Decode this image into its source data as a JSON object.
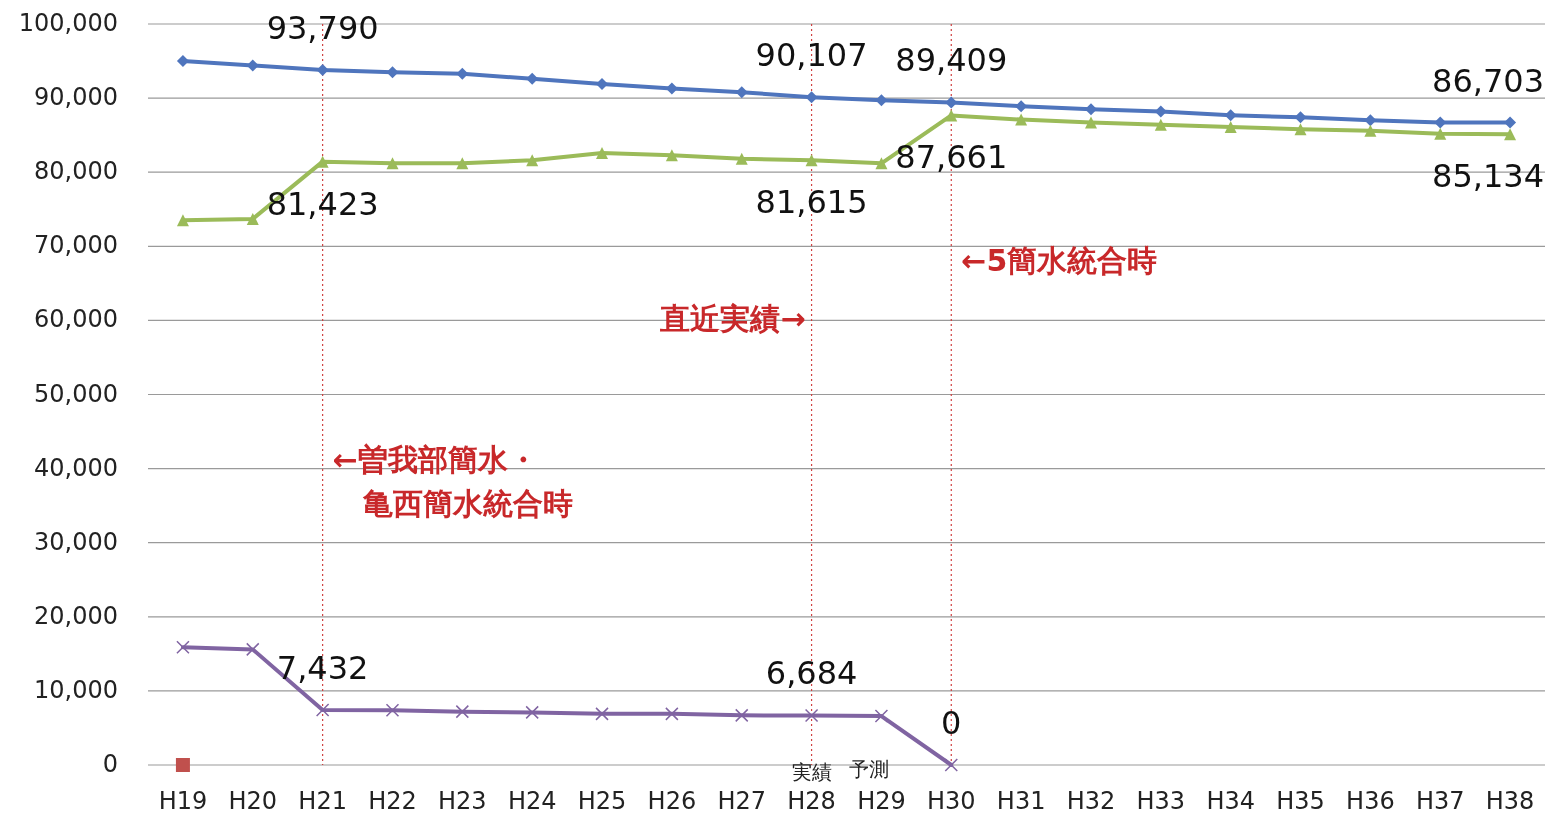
{
  "chart_data": {
    "type": "line",
    "categories": [
      "H19",
      "H20",
      "H21",
      "H22",
      "H23",
      "H24",
      "H25",
      "H26",
      "H27",
      "H28",
      "H29",
      "H30",
      "H31",
      "H32",
      "H33",
      "H34",
      "H35",
      "H36",
      "H37",
      "H38"
    ],
    "ylim": [
      0,
      100000
    ],
    "yticks": [
      0,
      {
        "value": 10000,
        "label": "10,000"
      },
      {
        "value": 20000,
        "label": "20,000"
      },
      {
        "value": 30000,
        "label": "30,000"
      },
      {
        "value": 40000,
        "label": "40,000"
      },
      {
        "value": 50000,
        "label": "50,000"
      },
      {
        "value": 60000,
        "label": "60,000"
      },
      {
        "value": 70000,
        "label": "70,000"
      },
      {
        "value": 80000,
        "label": "80,000"
      },
      {
        "value": 90000,
        "label": "90,000"
      },
      {
        "value": 100000,
        "label": "100,000"
      }
    ],
    "grid": "y",
    "series": [
      {
        "color": "#4f75bd",
        "marker": "diamond",
        "values": [
          95000,
          94400,
          93790,
          93500,
          93300,
          92600,
          91900,
          91300,
          90800,
          90107,
          89700,
          89409,
          88900,
          88500,
          88200,
          87700,
          87400,
          87000,
          86700,
          86703
        ],
        "value_labels": [
          null,
          null,
          "93,790",
          null,
          null,
          null,
          null,
          null,
          null,
          "90,107",
          null,
          "89,409",
          null,
          null,
          null,
          null,
          null,
          null,
          null,
          "86,703"
        ]
      },
      {
        "color": "#9bbb59",
        "marker": "triangle",
        "values": [
          73500,
          73700,
          81423,
          81200,
          81200,
          81600,
          82600,
          82300,
          81800,
          81615,
          81200,
          87661,
          87100,
          86700,
          86400,
          86100,
          85800,
          85600,
          85200,
          85134
        ],
        "value_labels": [
          null,
          null,
          "81,423",
          null,
          null,
          null,
          null,
          null,
          null,
          "81,615",
          null,
          "87,661",
          null,
          null,
          null,
          null,
          null,
          null,
          null,
          "85,134"
        ]
      },
      {
        "color": "#8064a2",
        "marker": "cross",
        "values": [
          15900,
          15600,
          7432,
          7400,
          7200,
          7100,
          6900,
          6900,
          6700,
          6684,
          6600,
          0,
          null,
          null,
          null,
          null,
          null,
          null,
          null,
          null
        ],
        "value_labels": [
          null,
          null,
          "7,432",
          null,
          null,
          null,
          null,
          null,
          null,
          "6,684",
          null,
          "0",
          null,
          null,
          null,
          null,
          null,
          null,
          null,
          null
        ]
      },
      {
        "color": "#c0504d",
        "marker": "square",
        "values": [
          0,
          null,
          null,
          null,
          null,
          null,
          null,
          null,
          null,
          null,
          null,
          null,
          null,
          null,
          null,
          null,
          null,
          null,
          null,
          null
        ]
      }
    ],
    "ref_lines": [
      {
        "axis": "x",
        "value": "H21",
        "color": "#d04040",
        "line_style": "dotted"
      },
      {
        "axis": "x",
        "value": "H28",
        "color": "#d04040",
        "line_style": "dotted"
      },
      {
        "axis": "x",
        "value": "H30",
        "color": "#d04040",
        "line_style": "dotted"
      }
    ],
    "annotations": [
      {
        "text": "←曽我部簡水・",
        "x": "H21",
        "y": 41000
      },
      {
        "text": "亀西簡水統合時",
        "x": "H21",
        "y": 35000
      },
      "直近実績→",
      {
        "text": "←5簡水統合時",
        "x": "H30",
        "y": 67800
      },
      {
        "text": "実績",
        "x": "H28",
        "y": 0
      },
      "予測"
    ]
  }
}
